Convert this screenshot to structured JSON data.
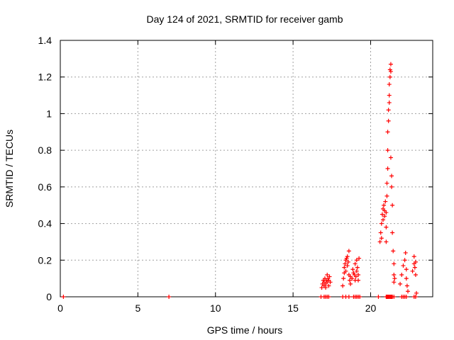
{
  "chart_data": {
    "type": "scatter",
    "title": "Day 124 of 2021, SRMTID for receiver gamb",
    "xlabel": "GPS time / hours",
    "ylabel": "SRMTID / TECUs",
    "xlim": [
      0,
      24
    ],
    "ylim": [
      0,
      1.4
    ],
    "xticks": [
      0,
      5,
      10,
      15,
      20
    ],
    "yticks": [
      0,
      0.2,
      0.4,
      0.6,
      0.8,
      1,
      1.2,
      1.4
    ],
    "xtick_labels": [
      "0",
      "5",
      "10",
      "15",
      "20"
    ],
    "ytick_labels": [
      "0",
      "0.2",
      "0.4",
      "0.6",
      "0.8",
      "1",
      "1.2",
      "1.4"
    ],
    "grid": true,
    "marker": "+",
    "color": "#ff0000",
    "series": [
      {
        "name": "SRMTID",
        "x": [
          0.2,
          7.0,
          16.8,
          16.85,
          16.9,
          16.95,
          17.0,
          17.0,
          17.05,
          17.1,
          17.1,
          17.15,
          17.2,
          17.2,
          17.25,
          17.3,
          17.3,
          17.35,
          17.4,
          17.0,
          17.1,
          17.2,
          17.3,
          18.2,
          18.25,
          18.3,
          18.3,
          18.35,
          18.4,
          18.4,
          18.45,
          18.5,
          18.5,
          18.55,
          18.6,
          18.6,
          18.65,
          18.7,
          18.2,
          18.4,
          18.6,
          18.7,
          18.8,
          18.85,
          18.9,
          18.95,
          19.0,
          19.0,
          19.05,
          19.1,
          19.1,
          19.15,
          19.2,
          19.2,
          19.25,
          18.9,
          19.0,
          19.1,
          19.2,
          19.3,
          20.5,
          20.6,
          20.65,
          20.7,
          20.7,
          20.75,
          20.8,
          20.8,
          20.85,
          20.9,
          20.9,
          20.95,
          21.0,
          21.0,
          21.0,
          21.05,
          21.05,
          21.1,
          21.1,
          21.1,
          21.15,
          21.15,
          21.2,
          21.2,
          21.2,
          21.25,
          21.25,
          21.3,
          21.3,
          21.3,
          21.35,
          21.35,
          21.4,
          21.4,
          21.45,
          21.5,
          21.5,
          21.5,
          21.55,
          21.0,
          21.05,
          21.1,
          21.15,
          21.2,
          21.25,
          21.3,
          21.35,
          21.4,
          21.5,
          21.9,
          22.0,
          22.1,
          22.2,
          22.25,
          22.3,
          22.3,
          22.35,
          22.4,
          22.0,
          22.1,
          22.2,
          22.3,
          22.7,
          22.8,
          22.8,
          22.85,
          22.9,
          22.9,
          22.95,
          22.8,
          22.9
        ],
        "y": [
          0,
          0,
          0,
          0.05,
          0.07,
          0.09,
          0.06,
          0.08,
          0.1,
          0.05,
          0.07,
          0.09,
          0.12,
          0.08,
          0.1,
          0.06,
          0.09,
          0.11,
          0.08,
          0,
          0,
          0,
          0,
          0.06,
          0.1,
          0.13,
          0.16,
          0.18,
          0.2,
          0.14,
          0.21,
          0.17,
          0.22,
          0.19,
          0.25,
          0.12,
          0.09,
          0.11,
          0,
          0,
          0,
          0.07,
          0.1,
          0.15,
          0.13,
          0.12,
          0.09,
          0.18,
          0.11,
          0.14,
          0.2,
          0.16,
          0.12,
          0.09,
          0.21,
          0,
          0,
          0,
          0,
          0,
          0,
          0.3,
          0.35,
          0.32,
          0.4,
          0.45,
          0.42,
          0.48,
          0.5,
          0.44,
          0.47,
          0.52,
          0.46,
          0.38,
          0.3,
          0.62,
          0.55,
          0.7,
          0.8,
          0.9,
          0.96,
          1.02,
          1.06,
          1.1,
          1.16,
          1.2,
          1.24,
          1.27,
          1.23,
          0.76,
          0.66,
          0.6,
          0.5,
          0.35,
          0.25,
          0.18,
          0.12,
          0.08,
          0.1,
          0,
          0,
          0,
          0,
          0,
          0,
          0,
          0,
          0,
          0,
          0.07,
          0.12,
          0.17,
          0.2,
          0.24,
          0.15,
          0.1,
          0.06,
          0.03,
          0,
          0,
          0,
          0,
          0.14,
          0.18,
          0.22,
          0.16,
          0.12,
          0.19,
          0.02,
          0,
          0
        ]
      }
    ]
  }
}
